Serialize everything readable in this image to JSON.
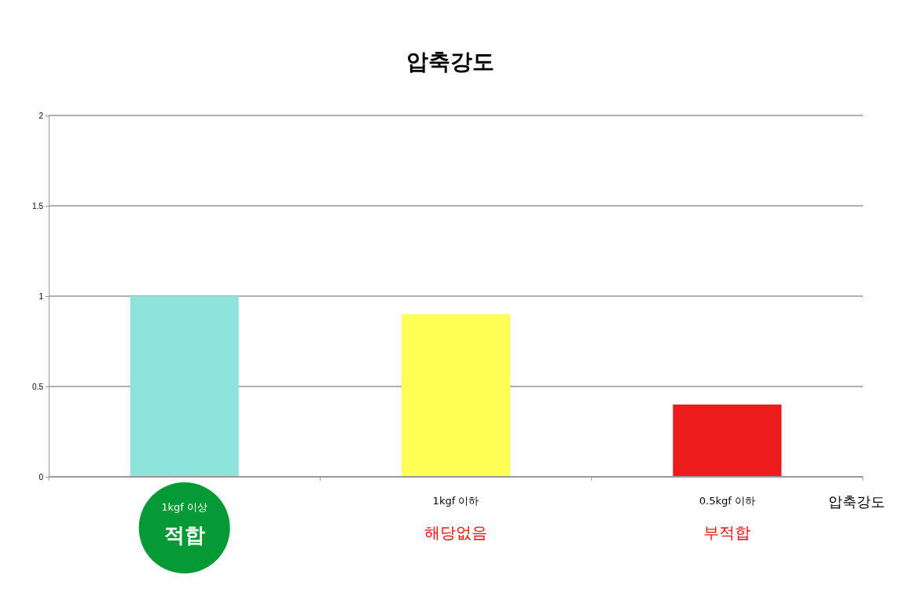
{
  "chart_data": {
    "type": "bar",
    "title": "압축강도",
    "xlabel": "압축강도",
    "categories": [
      "1kgf 이상",
      "1kgf 이하",
      "0.5kgf 이하"
    ],
    "values": [
      1,
      0.9,
      0.4
    ],
    "colors": [
      "#8ee4da",
      "#ffff55",
      "#ec1c1c"
    ],
    "ylim": [
      0,
      2
    ],
    "yticks": [
      0,
      0.5,
      1,
      1.5,
      2
    ],
    "grid": "y",
    "annotations": [
      "적합",
      "해당없음",
      "부적합"
    ]
  }
}
